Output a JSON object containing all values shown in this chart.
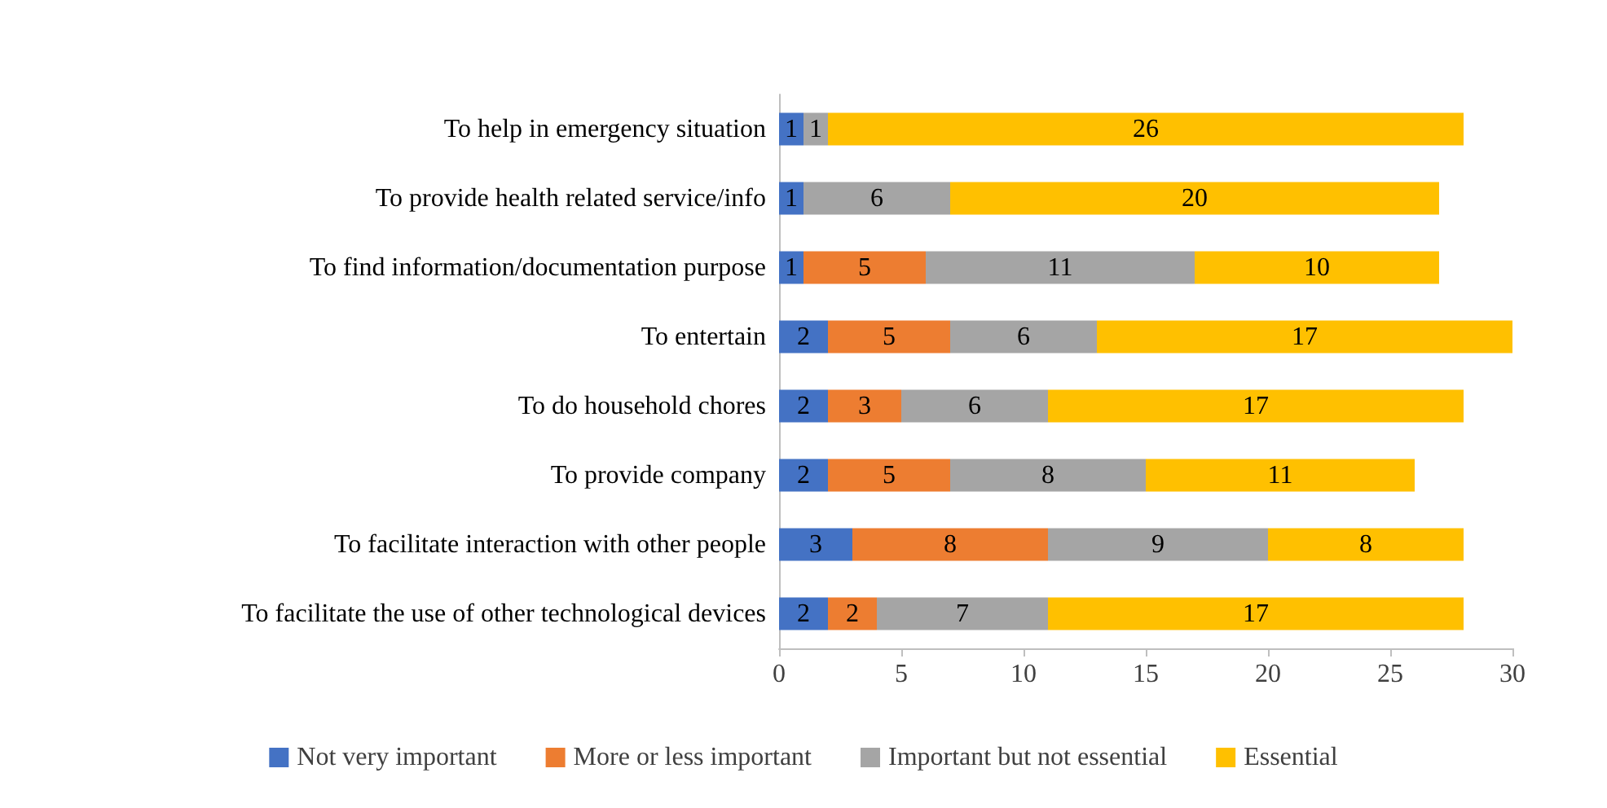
{
  "chart_data": {
    "type": "bar",
    "orientation": "horizontal",
    "stacked": true,
    "data_labels": true,
    "grid": false,
    "legend": "bottom",
    "categories": [
      "To help in emergency situation",
      "To provide health related service/info",
      "To find information/documentation purpose",
      "To entertain",
      "To do household chores",
      "To provide company",
      "To facilitate interaction with other people",
      "To facilitate the use of other technological devices"
    ],
    "xlim": [
      0,
      30
    ],
    "xticks": [
      0,
      5,
      10,
      15,
      20,
      25,
      30
    ],
    "series": [
      {
        "name": "Not very important",
        "color": "#4472c4",
        "values": [
          1,
          1,
          1,
          2,
          2,
          2,
          3,
          2
        ]
      },
      {
        "name": "More or less important",
        "color": "#ed7d31",
        "values": [
          null,
          null,
          5,
          5,
          3,
          5,
          8,
          2
        ]
      },
      {
        "name": "Important but not essential",
        "color": "#a5a5a5",
        "values": [
          1,
          6,
          11,
          6,
          6,
          8,
          9,
          7
        ]
      },
      {
        "name": "Essential",
        "color": "#ffc000",
        "values": [
          26,
          20,
          10,
          17,
          17,
          11,
          8,
          17
        ]
      }
    ]
  }
}
